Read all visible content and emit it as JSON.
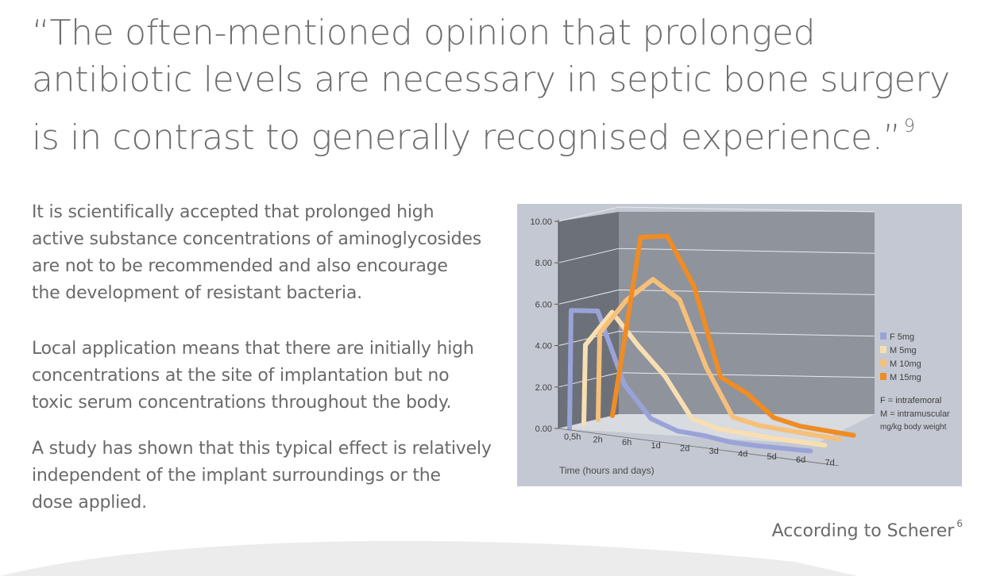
{
  "quote": {
    "lines": [
      "“The often-mentioned opinion that prolonged",
      "antibiotic levels are necessary in septic bone surgery",
      "is in contrast to generally recognised experience.”"
    ],
    "footnote": "9"
  },
  "paragraphs": [
    {
      "lines": [
        "It is scientifically accepted that prolonged high",
        "active substance concentrations of aminoglycosides",
        "are not to be recommended and also encourage",
        "the development of resistant bacteria."
      ]
    },
    {
      "lines": [
        "Local application means that there are initially high",
        "concentrations at the site of implantation but no",
        "toxic serum concentrations throughout the body."
      ]
    },
    {
      "lines": [
        "A study has shown that this typical effect is relatively",
        "independent of the implant surroundings or the",
        "dose applied."
      ]
    }
  ],
  "source": {
    "text": "According to Scherer",
    "footnote": "6"
  },
  "legend_notes": [
    "F   = intrafemoral",
    "M  = intramuscular",
    "mg/kg body weight"
  ],
  "chart_data": {
    "type": "line",
    "categories": [
      "0,5h",
      "2h",
      "6h",
      "1d",
      "2d",
      "3d",
      "4d",
      "5d",
      "6d",
      "7d"
    ],
    "xlabel": "Time (hours and days)",
    "ylabel": "",
    "ylim": [
      0,
      10
    ],
    "yticks": [
      "0.00",
      "2.00",
      "4.00",
      "6.00",
      "8.00",
      "10.00"
    ],
    "series": [
      {
        "name": "F   5mg",
        "color": "#9aa3d8",
        "values": [
          6.0,
          6.1,
          2.5,
          0.9,
          0.4,
          0.3,
          0.1,
          0.05,
          0.05,
          0.05
        ]
      },
      {
        "name": "M 5mg",
        "color": "#f8dfb2",
        "values": [
          4.0,
          5.8,
          4.2,
          2.8,
          0.8,
          0.4,
          0.3,
          0.2,
          0.15,
          0.1
        ]
      },
      {
        "name": "M 10mg",
        "color": "#f6c07a",
        "values": [
          4.4,
          6.2,
          7.4,
          6.5,
          3.2,
          0.8,
          0.5,
          0.4,
          0.3,
          0.2
        ]
      },
      {
        "name": "M 15mg",
        "color": "#ef8c24",
        "values": [
          0.5,
          9.2,
          9.4,
          7.0,
          2.5,
          1.8,
          0.7,
          0.4,
          0.3,
          0.2
        ]
      }
    ],
    "legend_position": "right"
  }
}
